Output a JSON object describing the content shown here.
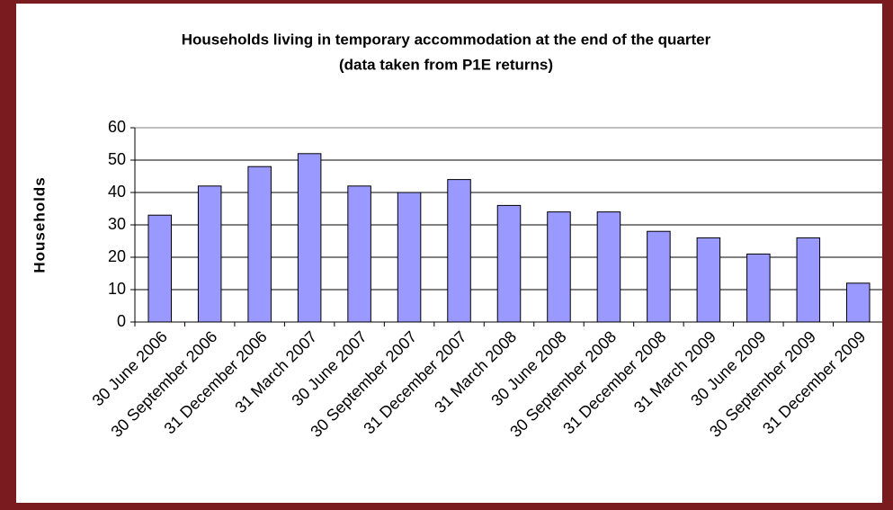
{
  "chart_data": {
    "type": "bar",
    "title": "Households living in temporary accommodation at the end of the quarter",
    "subtitle": "(data taken from P1E returns)",
    "y_label": "Households",
    "categories": [
      "30 June 2006",
      "30 September 2006",
      "31 December 2006",
      "31 March 2007",
      "30 June 2007",
      "30 September 2007",
      "31 December 2007",
      "31 March 2008",
      "30 June 2008",
      "30 September 2008",
      "31 December 2008",
      "31 March 2009",
      "30 June 2009",
      "30 September 2009",
      "31 December 2009"
    ],
    "values": [
      33,
      42,
      48,
      52,
      42,
      40,
      44,
      36,
      34,
      34,
      28,
      26,
      21,
      26,
      12
    ],
    "color": "#9999ff",
    "ylim": [
      0,
      60
    ],
    "yticks": [
      0,
      10,
      20,
      30,
      40,
      50,
      60
    ],
    "grid": true
  }
}
